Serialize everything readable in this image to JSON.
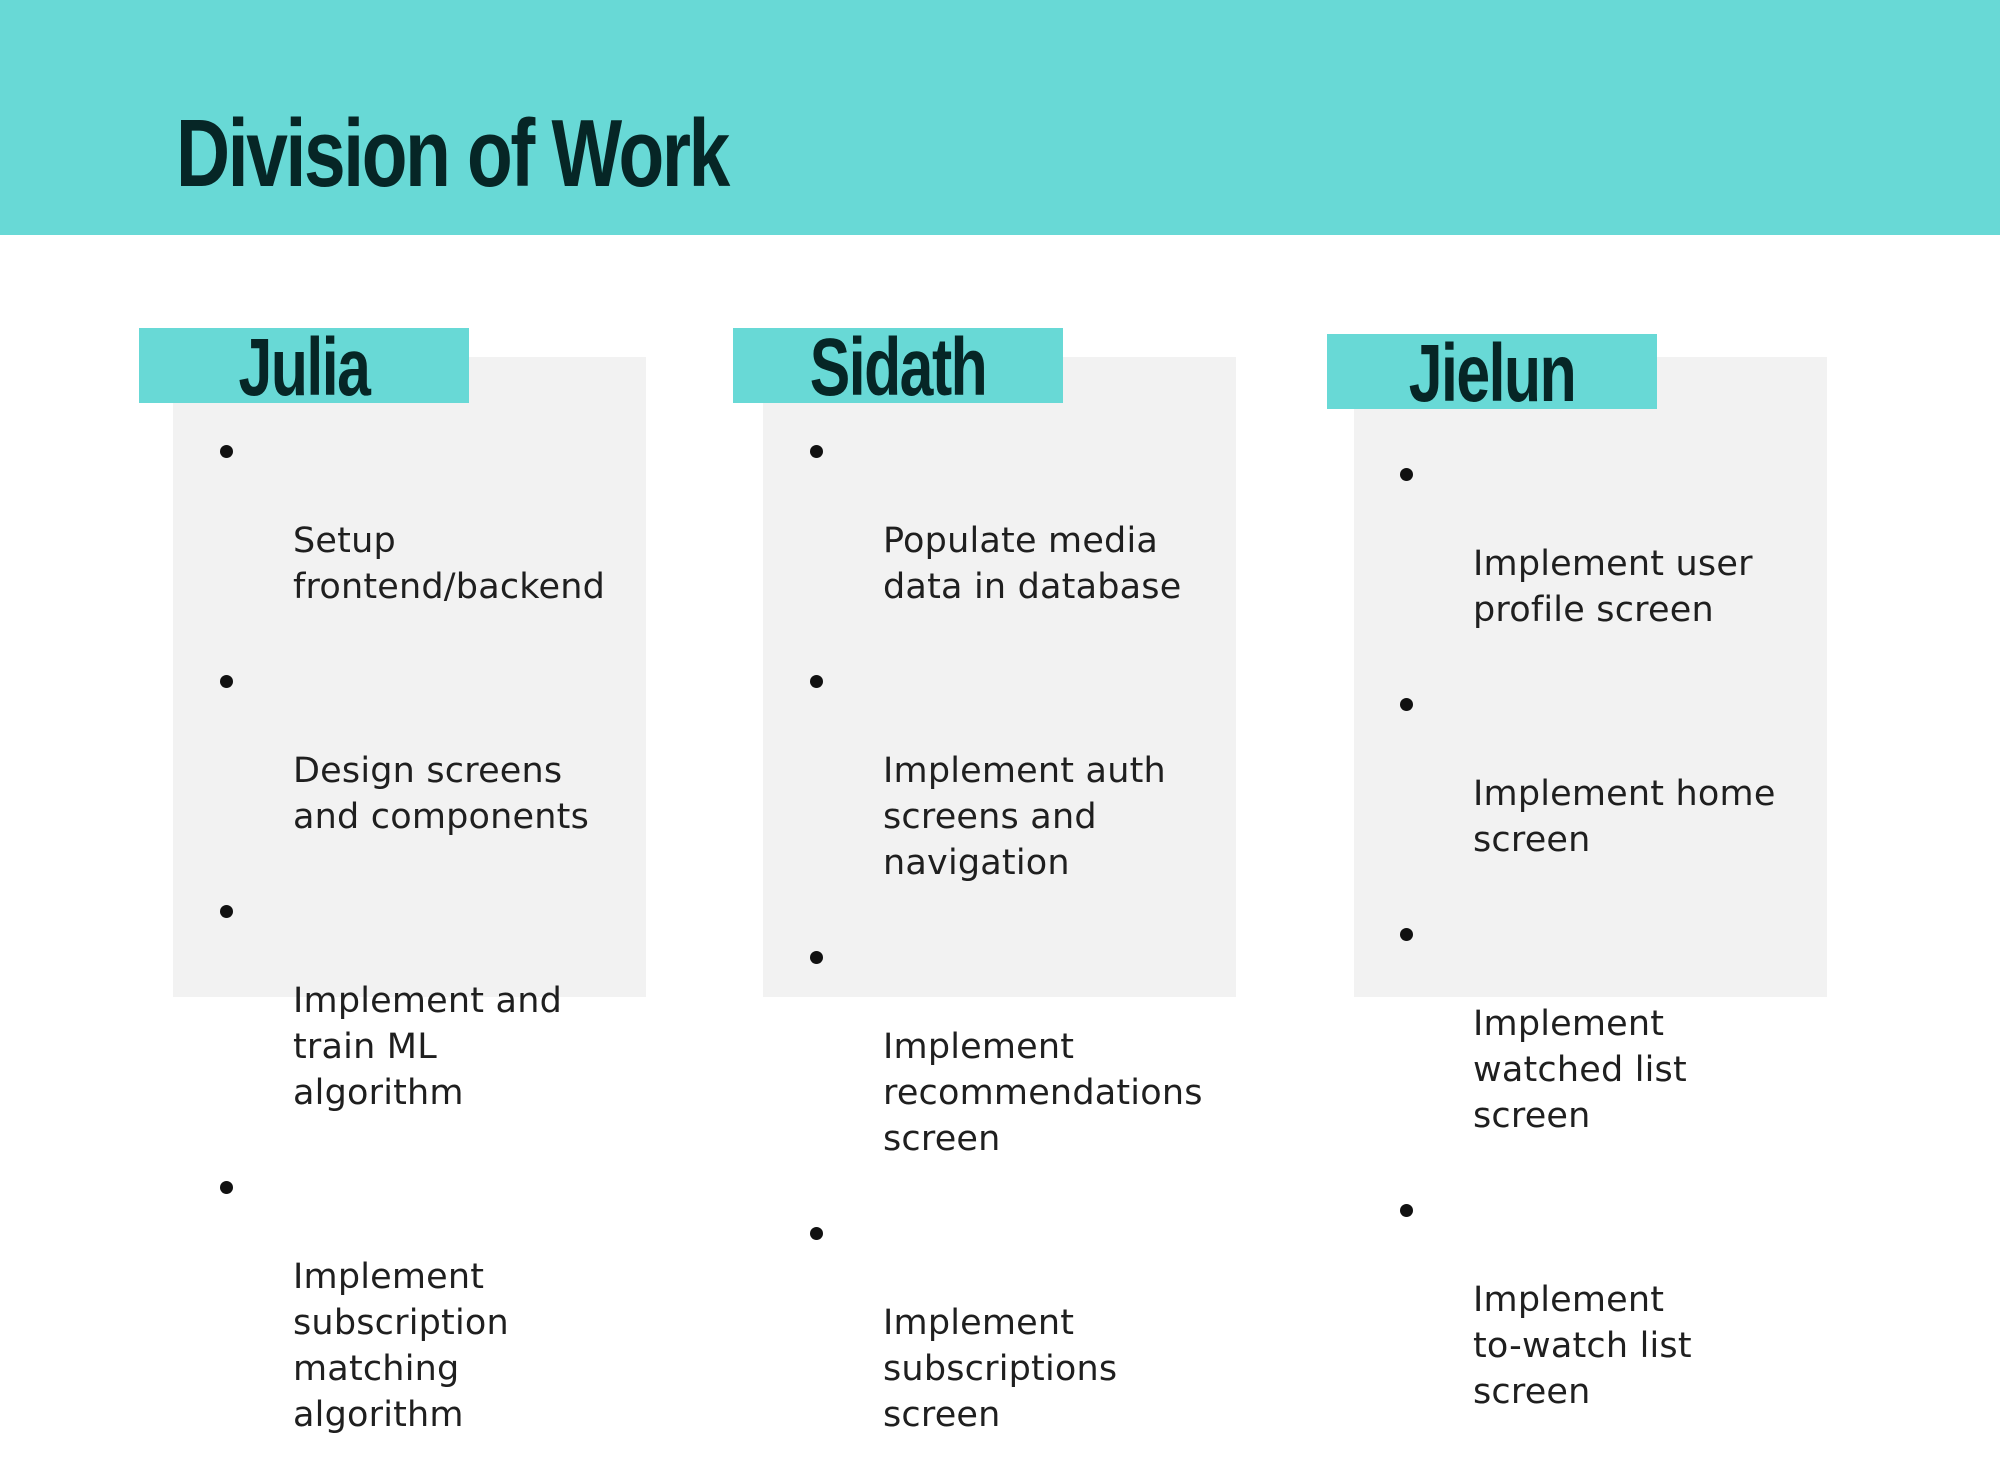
{
  "title": "Division of Work",
  "members": [
    {
      "name": "Julia",
      "tasks": [
        "Setup\nfrontend/backend",
        "Design screens\nand components",
        "Implement and\ntrain ML\nalgorithm",
        "Implement\nsubscription\nmatching\nalgorithm"
      ]
    },
    {
      "name": "Sidath",
      "tasks": [
        "Populate media\ndata in database",
        "Implement auth\nscreens and\nnavigation",
        "Implement\nrecommendations\nscreen",
        "Implement\nsubscriptions\nscreen"
      ]
    },
    {
      "name": "Jielun",
      "tasks": [
        "Implement user\nprofile screen",
        "Implement home\nscreen",
        "Implement\nwatched list\nscreen",
        "Implement\nto-watch list\nscreen"
      ]
    }
  ],
  "colors": {
    "accent": "#68d9d6",
    "heading": "#062626",
    "card": "#f2f2f2",
    "text": "#1f1f1f"
  }
}
